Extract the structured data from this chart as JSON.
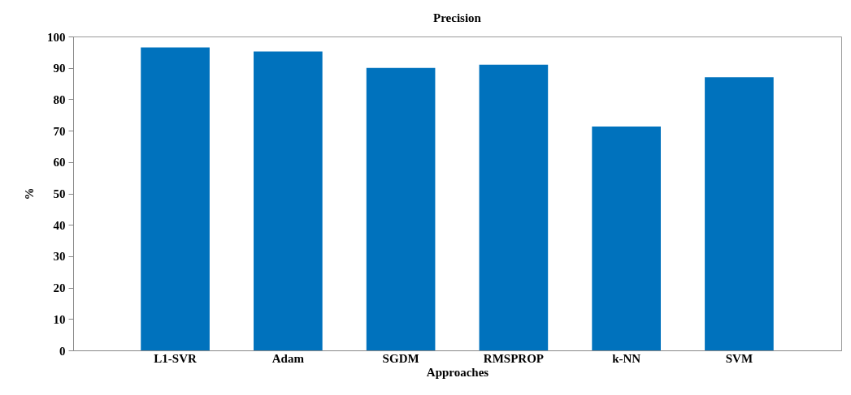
{
  "chart_data": {
    "type": "bar",
    "title": "Precision",
    "xlabel": "Approaches",
    "ylabel": "%",
    "categories": [
      "L1-SVR",
      "Adam",
      "SGDM",
      "RMSPROP",
      "k-NN",
      "SVM"
    ],
    "values": [
      96.5,
      95.2,
      90,
      91,
      71.3,
      87
    ],
    "color": "#0072bd",
    "ylim": [
      0,
      100
    ],
    "yticks": [
      0,
      10,
      20,
      30,
      40,
      50,
      60,
      70,
      80,
      90,
      100
    ],
    "grid": false
  }
}
